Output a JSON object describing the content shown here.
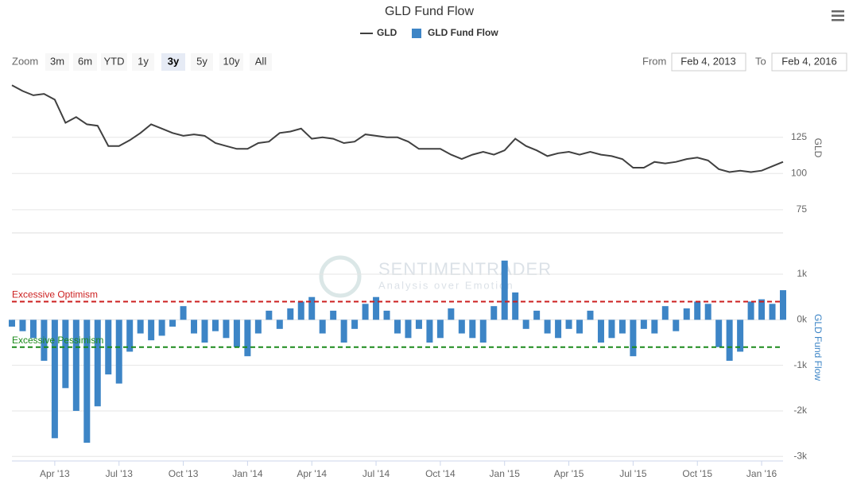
{
  "ui": {
    "zoom_label": "Zoom",
    "zoom_buttons": [
      "3m",
      "6m",
      "YTD",
      "1y",
      "3y",
      "5y",
      "10y",
      "All"
    ],
    "selected_button": 4,
    "from_label": "From",
    "from_value": "Feb 4, 2013",
    "to_label": "To",
    "to_value": "Feb 4, 2016"
  },
  "watermark": {
    "title": "SENTIMENTRADER",
    "subtitle": "Analysis over Emotion"
  },
  "chart_data": {
    "type": "line",
    "title": "GLD Fund Flow",
    "categories": [
      null,
      null,
      null,
      null,
      "Apr '13",
      null,
      null,
      null,
      null,
      null,
      "Jul '13",
      null,
      null,
      null,
      null,
      null,
      "Oct '13",
      null,
      null,
      null,
      null,
      null,
      "Jan '14",
      null,
      null,
      null,
      null,
      null,
      "Apr '14",
      null,
      null,
      null,
      null,
      null,
      "Jul '14",
      null,
      null,
      null,
      null,
      null,
      "Oct '14",
      null,
      null,
      null,
      null,
      null,
      "Jan '15",
      null,
      null,
      null,
      null,
      null,
      "Apr '15",
      null,
      null,
      null,
      null,
      null,
      "Jul '15",
      null,
      null,
      null,
      null,
      null,
      "Oct '15",
      null,
      null,
      null,
      null,
      null,
      "Jan '16",
      null,
      null
    ],
    "series": [
      {
        "name": "GLD",
        "type": "line",
        "axis": "y",
        "color": "#404040",
        "values": [
          161,
          157,
          154,
          155,
          151,
          135,
          139,
          134,
          133,
          119,
          119,
          123,
          128,
          134,
          131,
          128,
          126,
          127,
          126,
          121,
          119,
          117,
          117,
          121,
          122,
          128,
          129,
          131,
          124,
          125,
          124,
          121,
          122,
          127,
          126,
          125,
          125,
          122,
          117,
          117,
          117,
          113,
          110,
          113,
          115,
          113,
          116,
          124,
          119,
          116,
          112,
          114,
          115,
          113,
          115,
          113,
          112,
          110,
          104,
          104,
          108,
          107,
          108,
          110,
          111,
          109,
          103,
          101,
          102,
          101,
          102,
          105,
          108
        ]
      },
      {
        "name": "GLD Fund Flow",
        "type": "bar",
        "axis": "y2",
        "color": "#3d85c6",
        "values": [
          -150,
          -250,
          -400,
          -900,
          -2600,
          -1500,
          -2000,
          -2700,
          -1900,
          -1200,
          -1400,
          -700,
          -300,
          -450,
          -350,
          -150,
          300,
          -300,
          -500,
          -250,
          -400,
          -600,
          -800,
          -300,
          200,
          -200,
          250,
          400,
          500,
          -300,
          200,
          -500,
          -200,
          350,
          500,
          200,
          -300,
          -400,
          -200,
          -500,
          -400,
          250,
          -300,
          -400,
          -500,
          300,
          1300,
          600,
          -200,
          200,
          -300,
          -400,
          -200,
          -300,
          200,
          -500,
          -400,
          -300,
          -800,
          -200,
          -300,
          300,
          -250,
          250,
          400,
          350,
          -600,
          -900,
          -700,
          400,
          450,
          350,
          650
        ]
      }
    ],
    "y_label": "GLD",
    "ylim": [
      59,
      160
    ],
    "yticks": [
      75,
      100,
      125
    ],
    "y2_label": "GLD Fund Flow",
    "y2lim": [
      -3100,
      1350
    ],
    "y2ticks": [
      {
        "value": -3000,
        "label": "-3k"
      },
      {
        "value": -2000,
        "label": "-2k"
      },
      {
        "value": -1000,
        "label": "-1k"
      },
      {
        "value": 0,
        "label": "0k"
      },
      {
        "value": 1000,
        "label": "1k"
      }
    ],
    "reference_lines": [
      {
        "label": "Excessive Optimism",
        "value": 400,
        "axis": "y2",
        "color": "#cc1f1f"
      },
      {
        "label": "Excessive Pessimism",
        "value": -600,
        "axis": "y2",
        "color": "#1a8a1a"
      }
    ],
    "grid": true
  }
}
